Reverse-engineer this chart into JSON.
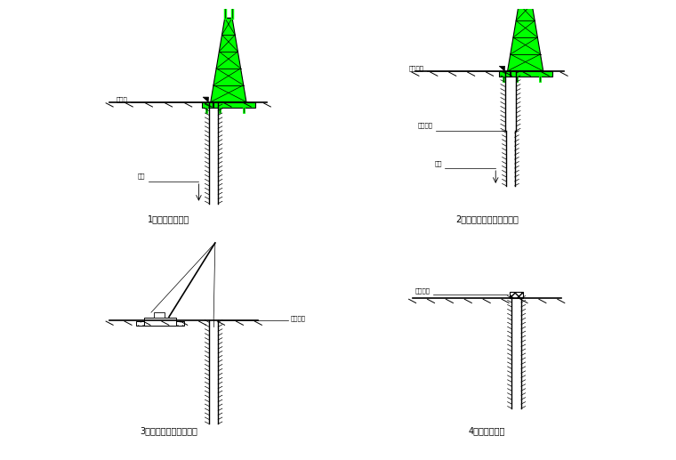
{
  "bg_color": "#ffffff",
  "fig_width": 7.6,
  "fig_height": 5.17,
  "captions": [
    "1、钒机就位钒孔",
    "2、钒进成孔护壁、定位桩",
    "3、吸车运动、入孔就位",
    "4、浇桩、完成"
  ],
  "green_color": "#00ff00",
  "dark_color": "#000000",
  "annotation_fontsize": 5,
  "caption_fontsize": 7
}
